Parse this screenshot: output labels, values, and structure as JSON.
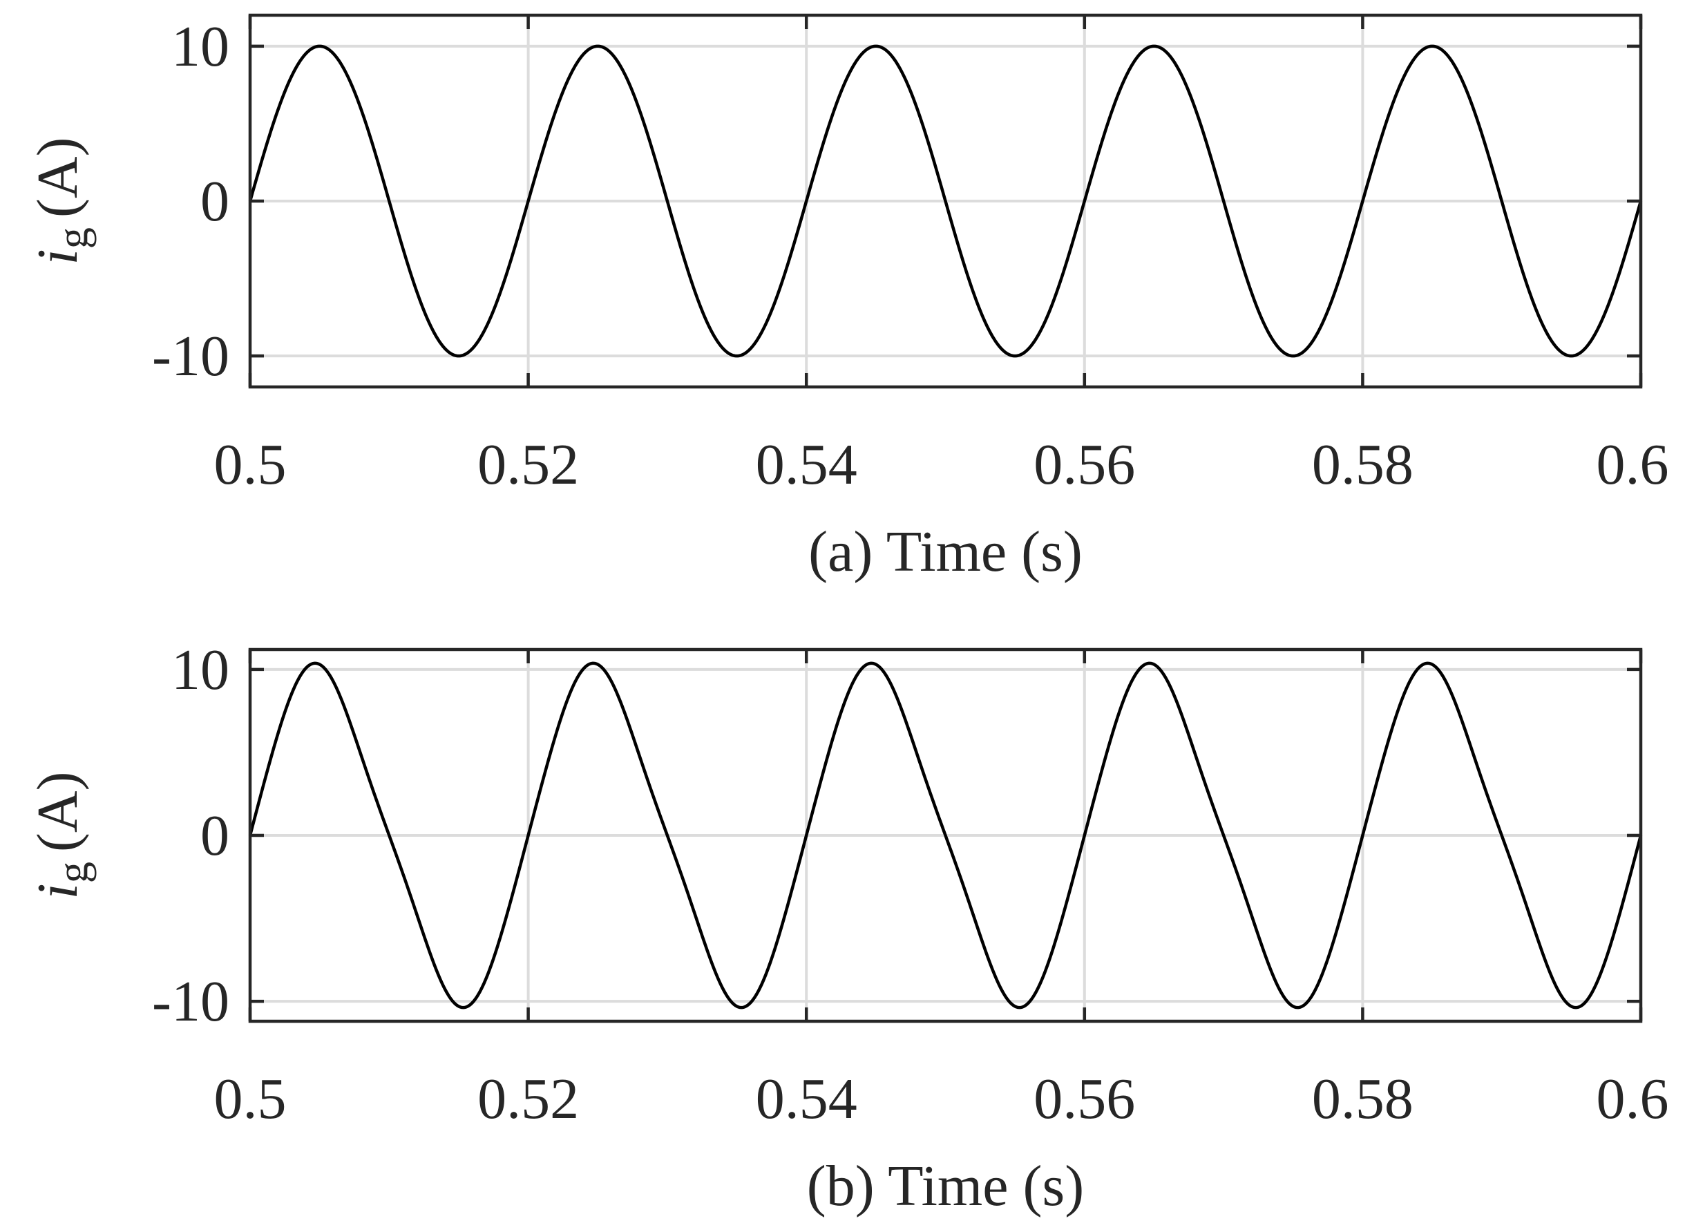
{
  "chart_data": [
    {
      "type": "line",
      "panel": "(a)",
      "xlabel": "(a) Time (s)",
      "ylabel": {
        "symbol": "i",
        "subscript": "g",
        "unit": "(A)"
      },
      "xlim": [
        0.5,
        0.6
      ],
      "ylim": [
        -12,
        12
      ],
      "xticks": [
        0.5,
        0.52,
        0.54,
        0.56,
        0.58,
        0.6
      ],
      "xtick_labels": [
        "0.5",
        "0.52",
        "0.54",
        "0.56",
        "0.58",
        "0.6"
      ],
      "yticks": [
        -10,
        0,
        10
      ],
      "ytick_labels": [
        "-10",
        "0",
        "10"
      ],
      "grid": true,
      "series": [
        {
          "color": "#000000",
          "waveform": "sine",
          "amplitude": 10,
          "frequency_hz": 50,
          "x": [
            0.5,
            0.505,
            0.51,
            0.515,
            0.52,
            0.525,
            0.53,
            0.535,
            0.54,
            0.545,
            0.55,
            0.555,
            0.56,
            0.565,
            0.57,
            0.575,
            0.58,
            0.585,
            0.59,
            0.595,
            0.6
          ],
          "y": [
            0,
            10,
            0,
            -10,
            0,
            10,
            0,
            -10,
            0,
            10,
            0,
            -10,
            0,
            10,
            0,
            -10,
            0,
            10,
            0,
            -10,
            0
          ]
        }
      ]
    },
    {
      "type": "line",
      "panel": "(b)",
      "xlabel": "(b) Time (s)",
      "ylabel": {
        "symbol": "i",
        "subscript": "g",
        "unit": "(A)"
      },
      "xlim": [
        0.5,
        0.6
      ],
      "ylim": [
        -11.2,
        11.2
      ],
      "xticks": [
        0.5,
        0.52,
        0.54,
        0.56,
        0.58,
        0.6
      ],
      "xtick_labels": [
        "0.5",
        "0.52",
        "0.54",
        "0.56",
        "0.58",
        "0.6"
      ],
      "yticks": [
        -10,
        0,
        10
      ],
      "ytick_labels": [
        "-10",
        "0",
        "10"
      ],
      "grid": true,
      "series": [
        {
          "color": "#000000",
          "waveform": "distorted-sine",
          "amplitude": 10.4,
          "frequency_hz": 50,
          "x": [
            0.5,
            0.5056,
            0.51,
            0.5148,
            0.52,
            0.5256,
            0.53,
            0.5348,
            0.54,
            0.5456,
            0.55,
            0.5548,
            0.56,
            0.5656,
            0.57,
            0.5748,
            0.58,
            0.5856,
            0.59,
            0.5948,
            0.6
          ],
          "y": [
            0,
            10.4,
            0,
            -10.4,
            0,
            10.4,
            0,
            -10.4,
            0,
            10.4,
            0,
            -10.4,
            0,
            10.4,
            0,
            -10.4,
            0,
            10.4,
            0,
            -10.4,
            0
          ]
        }
      ]
    }
  ],
  "colors": {
    "grid": "#dcdcdc",
    "axes": "#262626",
    "trace": "#000000"
  }
}
